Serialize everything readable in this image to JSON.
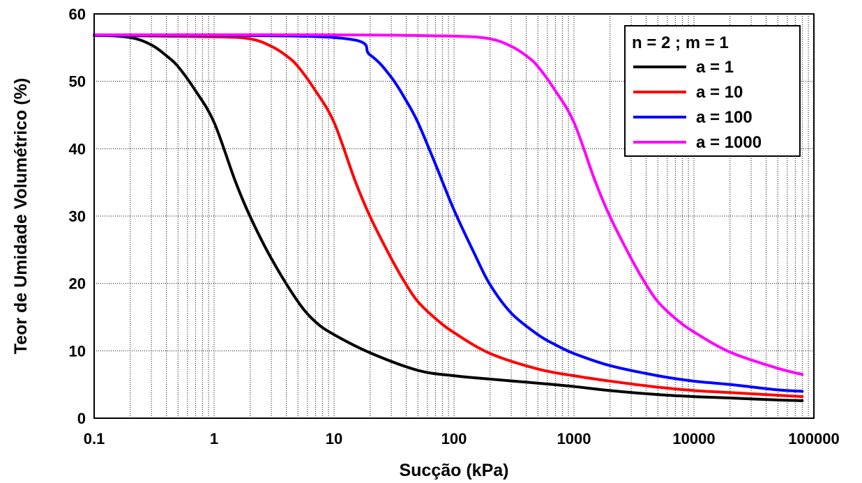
{
  "chart_data": {
    "type": "line",
    "xlabel": "Sucção (kPa)",
    "ylabel": "Teor de Umidade Volumétrico (%)",
    "x_scale": "log",
    "xlim": [
      0.1,
      100000
    ],
    "ylim": [
      0,
      60
    ],
    "x_ticks": [
      0.1,
      1,
      10,
      100,
      1000,
      10000,
      100000
    ],
    "x_tick_labels": [
      "0.1",
      "1",
      "10",
      "100",
      "1000",
      "10000",
      "100000"
    ],
    "y_ticks": [
      0,
      10,
      20,
      30,
      40,
      50,
      60
    ],
    "y_tick_labels": [
      "0",
      "10",
      "20",
      "30",
      "40",
      "50",
      "60"
    ],
    "grid": true,
    "legend_position": "top-right",
    "legend_title": "n = 2 ; m = 1",
    "series": [
      {
        "name": "a = 1",
        "color": "#000000",
        "x": [
          0.1,
          0.2,
          0.3,
          0.4,
          0.5,
          0.7,
          1,
          1.5,
          2,
          3,
          5,
          7,
          10,
          20,
          50,
          100,
          200,
          500,
          1000,
          2000,
          5000,
          10000,
          20000,
          50000,
          80000
        ],
        "y": [
          56.9,
          56.5,
          55.4,
          53.8,
          52.2,
          48.6,
          43.9,
          35.2,
          29.9,
          23.7,
          17.3,
          14.3,
          12.4,
          9.7,
          7.1,
          6.3,
          5.8,
          5.2,
          4.7,
          4.1,
          3.5,
          3.2,
          3.0,
          2.7,
          2.6
        ]
      },
      {
        "name": "a = 10",
        "color": "#ff0000",
        "x": [
          0.1,
          1,
          2,
          3,
          4,
          5,
          7,
          10,
          15,
          20,
          30,
          40,
          50,
          70,
          100,
          200,
          500,
          1000,
          2000,
          5000,
          10000,
          20000,
          50000,
          80000
        ],
        "y": [
          56.8,
          56.6,
          56.3,
          55.2,
          53.8,
          52.2,
          48.6,
          43.9,
          35.2,
          29.9,
          23.7,
          19.8,
          17.3,
          14.8,
          12.7,
          9.6,
          7.3,
          6.3,
          5.5,
          4.6,
          4.1,
          3.8,
          3.4,
          3.2
        ]
      },
      {
        "name": "a = 100",
        "color": "#0000ff",
        "x": [
          0.1,
          10,
          20,
          30,
          40,
          50,
          70,
          100,
          150,
          200,
          300,
          500,
          700,
          1000,
          2000,
          5000,
          10000,
          20000,
          50000,
          80000
        ],
        "y": [
          56.8,
          56.5,
          53.9,
          50.6,
          47.1,
          43.9,
          37.7,
          30.9,
          24.2,
          19.8,
          15.6,
          12.4,
          10.9,
          9.6,
          7.8,
          6.3,
          5.5,
          5.0,
          4.2,
          4.0
        ]
      },
      {
        "name": "a = 1000",
        "color": "#ff00ff",
        "x": [
          0.1,
          10,
          100,
          200,
          300,
          400,
          500,
          700,
          1000,
          1500,
          2000,
          3000,
          4000,
          5000,
          7000,
          10000,
          20000,
          50000,
          80000
        ],
        "y": [
          56.9,
          56.9,
          56.7,
          56.3,
          55.2,
          53.8,
          52.2,
          48.6,
          43.9,
          35.2,
          29.9,
          23.7,
          19.8,
          17.3,
          14.8,
          12.8,
          9.8,
          7.4,
          6.5
        ]
      }
    ]
  }
}
